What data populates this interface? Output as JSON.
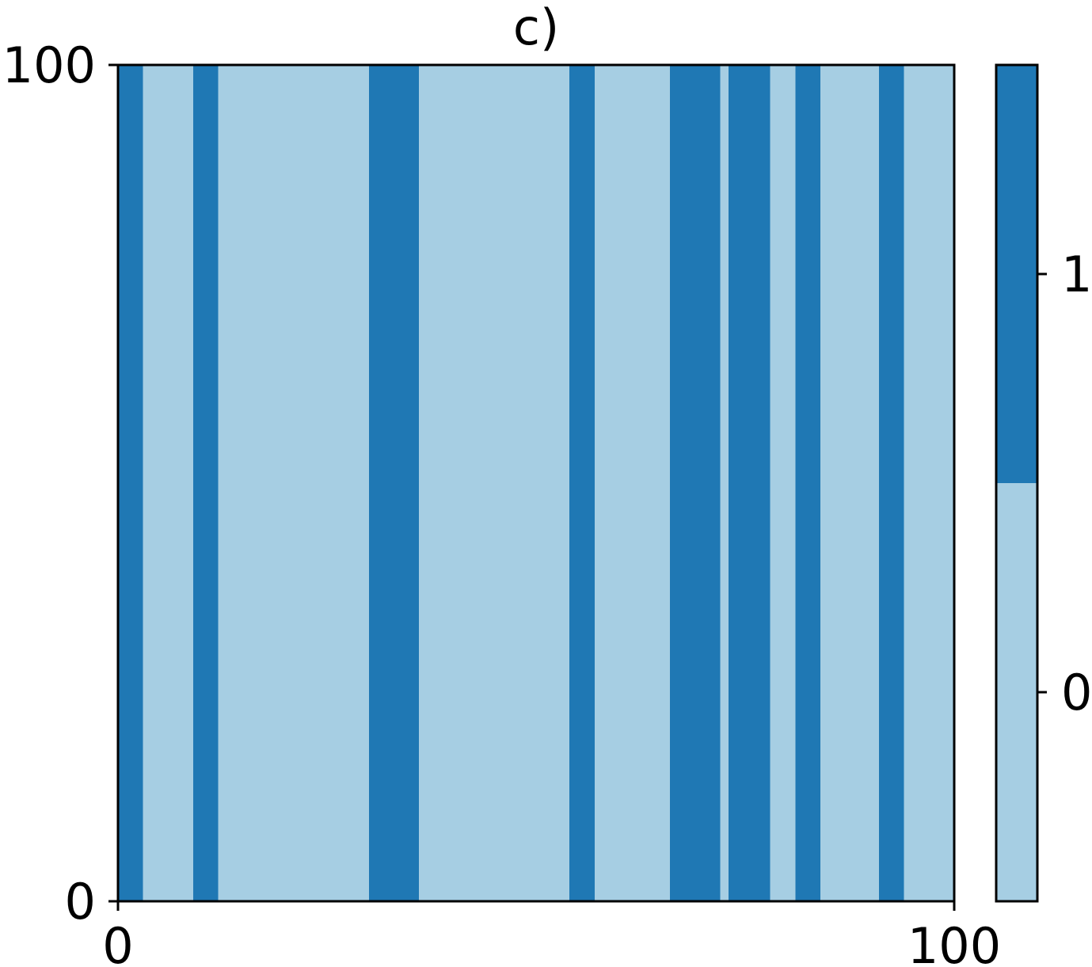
{
  "chart_data": {
    "type": "heatmap",
    "title": "c)",
    "xlabel": "",
    "ylabel": "",
    "xlim": [
      0,
      100
    ],
    "ylim": [
      0,
      100
    ],
    "x_ticks": [
      "0",
      "100"
    ],
    "y_ticks": [
      "0",
      "100"
    ],
    "grid": false,
    "description_of_values": "binary state per x column, constant along y",
    "columns": [
      {
        "x_start": 0,
        "x_end": 3,
        "value": 1
      },
      {
        "x_start": 3,
        "x_end": 9,
        "value": 0
      },
      {
        "x_start": 9,
        "x_end": 12,
        "value": 1
      },
      {
        "x_start": 12,
        "x_end": 30,
        "value": 0
      },
      {
        "x_start": 30,
        "x_end": 36,
        "value": 1
      },
      {
        "x_start": 36,
        "x_end": 54,
        "value": 0
      },
      {
        "x_start": 54,
        "x_end": 57,
        "value": 1
      },
      {
        "x_start": 57,
        "x_end": 66,
        "value": 0
      },
      {
        "x_start": 66,
        "x_end": 72,
        "value": 1
      },
      {
        "x_start": 72,
        "x_end": 73,
        "value": 0
      },
      {
        "x_start": 73,
        "x_end": 78,
        "value": 1
      },
      {
        "x_start": 78,
        "x_end": 81,
        "value": 0
      },
      {
        "x_start": 81,
        "x_end": 84,
        "value": 1
      },
      {
        "x_start": 84,
        "x_end": 91,
        "value": 0
      },
      {
        "x_start": 91,
        "x_end": 94,
        "value": 1
      },
      {
        "x_start": 94,
        "x_end": 100,
        "value": 0
      }
    ],
    "colorbar": {
      "ticks": [
        "0",
        "1"
      ],
      "levels": [
        0,
        1
      ],
      "range": [
        -0.5,
        1.5
      ],
      "colors": {
        "0": "#a6cee3",
        "1": "#1f78b4"
      }
    }
  }
}
